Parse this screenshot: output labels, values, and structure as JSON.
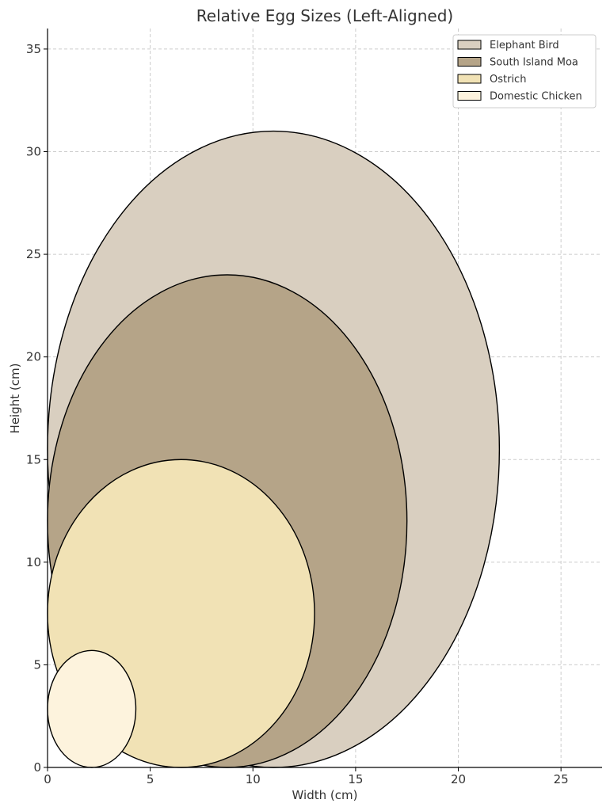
{
  "chart_data": {
    "type": "ellipse",
    "title": "Relative Egg Sizes (Left-Aligned)",
    "xlabel": "Width (cm)",
    "ylabel": "Height (cm)",
    "xlim": [
      0,
      27
    ],
    "ylim": [
      0,
      36
    ],
    "xticks": [
      0,
      5,
      10,
      15,
      20,
      25
    ],
    "yticks": [
      0,
      5,
      10,
      15,
      20,
      25,
      30,
      35
    ],
    "grid": true,
    "legend_position": "top-right",
    "series": [
      {
        "name": "Elephant Bird",
        "width": 22,
        "height": 31,
        "color": "#d9cfc0"
      },
      {
        "name": "South Island Moa",
        "width": 17.5,
        "height": 24,
        "color": "#b5a488"
      },
      {
        "name": "Ostrich",
        "width": 13,
        "height": 15,
        "color": "#f1e2b5"
      },
      {
        "name": "Domestic Chicken",
        "width": 4.3,
        "height": 5.7,
        "color": "#fdf3dd"
      }
    ]
  }
}
